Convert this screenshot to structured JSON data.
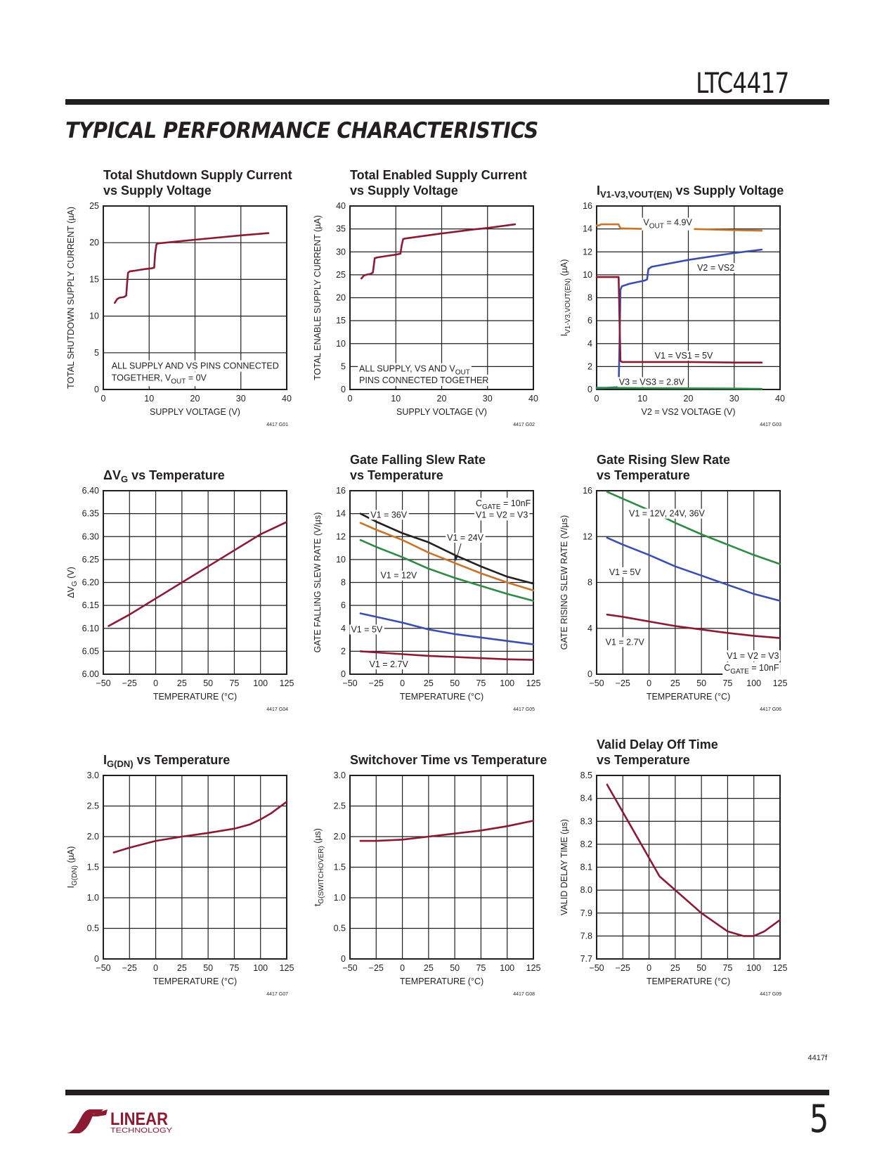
{
  "header": {
    "part_number": "LTC4417",
    "section_title": "TYPICAL PERFORMANCE CHARACTERISTICS"
  },
  "footer": {
    "doc_code": "4417f",
    "page_number": "5",
    "logo_text": "LINEAR",
    "logo_subtext": "TECHNOLOGY"
  },
  "colors": {
    "red": "#8b1a32",
    "blue": "#3a4fb0",
    "green": "#2e8b45",
    "orange": "#c8742a",
    "black": "#231f20",
    "brand": "#8b1a32"
  },
  "chart_data": [
    {
      "id": "g01",
      "type": "line",
      "title": [
        "Total Shutdown Supply Current",
        "vs Supply Voltage"
      ],
      "xlabel": "SUPPLY VOLTAGE (V)",
      "ylabel": "TOTAL SHUTDOWN SUPPLY CURRENT (µA)",
      "xlim": [
        0,
        40
      ],
      "ylim": [
        0,
        25
      ],
      "xticks": [
        0,
        10,
        20,
        30,
        40
      ],
      "yticks": [
        0,
        5,
        10,
        15,
        20,
        25
      ],
      "grid": true,
      "fig_id": "4417 G01",
      "notes": [
        {
          "text": "ALL SUPPLY AND VS PINS CONNECTED",
          "x": 1.8,
          "y": 3.2
        },
        {
          "text": "TOGETHER, Vₒᵤₜ = 0V",
          "rich": [
            "TOGETHER, V",
            "OUT",
            " = 0V"
          ],
          "x": 1.8,
          "y": 1.6
        }
      ],
      "series": [
        {
          "name": "Shutdown current",
          "color": "red",
          "x": [
            2.5,
            3,
            3.5,
            4.5,
            5,
            5.2,
            5.4,
            5.8,
            7,
            9,
            10.5,
            11.1,
            11.3,
            11.6,
            12,
            20,
            30,
            36
          ],
          "y": [
            11.8,
            12.3,
            12.5,
            12.6,
            12.8,
            14.5,
            15.9,
            16.1,
            16.2,
            16.4,
            16.5,
            16.6,
            18.5,
            19.8,
            19.9,
            20.4,
            21.0,
            21.3
          ]
        }
      ]
    },
    {
      "id": "g02",
      "type": "line",
      "title": [
        "Total Enabled Supply Current",
        "vs Supply Voltage"
      ],
      "xlabel": "SUPPLY VOLTAGE (V)",
      "ylabel": "TOTAL ENABLE SUPPLY CURRENT (µA)",
      "xlim": [
        0,
        40
      ],
      "ylim": [
        0,
        40
      ],
      "xticks": [
        0,
        10,
        20,
        30,
        40
      ],
      "yticks": [
        0,
        5,
        10,
        15,
        20,
        25,
        30,
        35,
        40
      ],
      "grid": true,
      "fig_id": "4417 G02",
      "notes": [
        {
          "text": "ALL SUPPLY, VS AND V",
          "rich": [
            "ALL SUPPLY, VS AND V",
            "OUT",
            ""
          ],
          "x": 2,
          "y": 4.5
        },
        {
          "text": "PINS CONNECTED TOGETHER",
          "x": 2,
          "y": 2.0
        }
      ],
      "series": [
        {
          "name": "Enabled current",
          "color": "red",
          "x": [
            2.5,
            3,
            3.5,
            4.5,
            5,
            5.2,
            5.4,
            6,
            8,
            10,
            11,
            11.3,
            11.6,
            12,
            20,
            27,
            30,
            36
          ],
          "y": [
            24.2,
            24.8,
            25.0,
            25.2,
            25.5,
            27.0,
            28.6,
            28.8,
            29.1,
            29.4,
            29.6,
            31.5,
            32.8,
            32.9,
            34.0,
            34.9,
            35.2,
            36.0
          ]
        }
      ]
    },
    {
      "id": "g03",
      "type": "line",
      "title": [
        "I",
        "V1-V3,VOUT(EN)",
        " vs Supply Voltage"
      ],
      "xlabel": "V2 = VS2 VOLTAGE (V)",
      "ylabel": "I V1-V3,VOUT(EN) (µA)",
      "ylabel_rich": [
        "I",
        "V1-V3,VOUT(EN)",
        " (µA)"
      ],
      "xlim": [
        0,
        40
      ],
      "ylim": [
        0,
        16
      ],
      "xticks": [
        0,
        10,
        20,
        30,
        40
      ],
      "yticks": [
        0,
        2,
        4,
        6,
        8,
        10,
        12,
        14,
        16
      ],
      "grid": true,
      "fig_id": "4417 G03",
      "series": [
        {
          "name": "VOUT = 4.9V",
          "label_rich": [
            "V",
            "OUT",
            " = 4.9V"
          ],
          "color": "orange",
          "x": [
            0,
            0.5,
            1,
            4.8,
            5.0,
            5.3,
            10,
            20,
            30,
            36
          ],
          "y": [
            14.3,
            14.3,
            14.4,
            14.4,
            14.2,
            14.05,
            14.0,
            14.0,
            13.9,
            13.85
          ]
        },
        {
          "name": "V2 = VS2",
          "color": "blue",
          "x": [
            0,
            4.8,
            5.0,
            5.2,
            5.5,
            7,
            10.5,
            11,
            11.3,
            12,
            20,
            30,
            36
          ],
          "y": [
            0.1,
            0.2,
            4.0,
            8.7,
            9.0,
            9.2,
            9.5,
            9.6,
            10.5,
            10.7,
            11.3,
            11.9,
            12.2
          ]
        },
        {
          "name": "V1 = VS1 = 5V",
          "color": "red",
          "x": [
            0,
            4.8,
            5.0,
            5.2,
            5.5,
            10,
            20,
            30,
            36
          ],
          "y": [
            9.8,
            9.8,
            6.0,
            2.5,
            2.4,
            2.4,
            2.4,
            2.35,
            2.35
          ]
        },
        {
          "name": "V3 = VS3 = 2.8V",
          "color": "green",
          "x": [
            0,
            10,
            20,
            30,
            36
          ],
          "y": [
            0.15,
            0.12,
            0.1,
            0.08,
            0.05
          ]
        }
      ],
      "labels": [
        {
          "series": 0,
          "x": 15.5,
          "y": 14.55
        },
        {
          "series": 1,
          "x": 26,
          "y": 10.6
        },
        {
          "series": 2,
          "x": 19,
          "y": 2.95
        },
        {
          "series": 3,
          "x": 12,
          "y": 0.65
        }
      ]
    },
    {
      "id": "g04",
      "type": "line",
      "title": [
        "ΔV",
        "G",
        " vs Temperature"
      ],
      "xlabel": "TEMPERATURE (°C)",
      "ylabel": "ΔV G (V)",
      "ylabel_rich": [
        "ΔV",
        "G",
        " (V)"
      ],
      "xlim": [
        -50,
        125
      ],
      "ylim": [
        6.0,
        6.4
      ],
      "xticks": [
        -50,
        -25,
        0,
        25,
        50,
        75,
        100,
        125
      ],
      "yticks": [
        6.0,
        6.05,
        6.1,
        6.15,
        6.2,
        6.25,
        6.3,
        6.35,
        6.4
      ],
      "ytick_decimals": 2,
      "grid": true,
      "fig_id": "4417 G04",
      "series": [
        {
          "name": "ΔVG",
          "color": "red",
          "x": [
            -45,
            -25,
            0,
            25,
            50,
            75,
            100,
            125
          ],
          "y": [
            6.105,
            6.13,
            6.165,
            6.2,
            6.235,
            6.27,
            6.305,
            6.332
          ]
        }
      ]
    },
    {
      "id": "g05",
      "type": "line",
      "title": [
        "Gate Falling Slew Rate",
        "vs Temperature"
      ],
      "xlabel": "TEMPERATURE (°C)",
      "ylabel": "GATE FALLING SLEW RATE (V/µs)",
      "xlim": [
        -50,
        125
      ],
      "ylim": [
        0,
        16
      ],
      "xticks": [
        -50,
        -25,
        0,
        25,
        50,
        75,
        100,
        125
      ],
      "yticks": [
        0,
        2,
        4,
        6,
        8,
        10,
        12,
        14,
        16
      ],
      "grid": true,
      "fig_id": "4417 G05",
      "notes": [
        {
          "text": "C GATE = 10nF",
          "rich": [
            "C",
            "GATE",
            " = 10nF"
          ],
          "x": 70,
          "y": 14.9
        },
        {
          "text": "V1 = V2 = V3",
          "x": 70,
          "y": 13.9
        }
      ],
      "series": [
        {
          "name": "V1 = 36V",
          "color": "black",
          "x": [
            -40,
            -25,
            0,
            25,
            50,
            75,
            100,
            125
          ],
          "y": [
            14.0,
            13.3,
            12.3,
            11.5,
            10.4,
            9.4,
            8.5,
            7.9
          ]
        },
        {
          "name": "V1 = 24V",
          "color": "orange",
          "x": [
            -40,
            -25,
            0,
            25,
            50,
            75,
            100,
            125
          ],
          "y": [
            13.2,
            12.6,
            11.7,
            10.6,
            9.7,
            8.8,
            8.0,
            7.3
          ]
        },
        {
          "name": "V1 = 12V",
          "color": "green",
          "x": [
            -40,
            -25,
            0,
            25,
            50,
            75,
            100,
            125
          ],
          "y": [
            11.7,
            11.1,
            10.2,
            9.2,
            8.4,
            7.7,
            7.0,
            6.4
          ]
        },
        {
          "name": "V1 = 5V",
          "color": "blue",
          "x": [
            -40,
            -25,
            0,
            25,
            50,
            75,
            100,
            125
          ],
          "y": [
            5.3,
            5.0,
            4.5,
            3.9,
            3.5,
            3.2,
            2.9,
            2.6
          ]
        },
        {
          "name": "V1 = 2.7V",
          "color": "red",
          "x": [
            -40,
            -25,
            0,
            25,
            50,
            75,
            100,
            125
          ],
          "y": [
            2.0,
            1.9,
            1.75,
            1.6,
            1.5,
            1.4,
            1.3,
            1.25
          ]
        }
      ],
      "labels": [
        {
          "series": 0,
          "x": -13,
          "y": 13.9
        },
        {
          "series": 1,
          "x": 60,
          "y": 11.9
        },
        {
          "series": 2,
          "x": -3.5,
          "y": 8.6
        },
        {
          "series": 3,
          "x": -34,
          "y": 3.9
        },
        {
          "series": 4,
          "x": -13,
          "y": 0.85
        }
      ]
    },
    {
      "id": "g06",
      "type": "line",
      "title": [
        "Gate Rising Slew Rate",
        "vs Temperature"
      ],
      "xlabel": "TEMPERATURE (°C)",
      "ylabel": "GATE RISING SLEW RATE (V/µs)",
      "xlim": [
        -50,
        125
      ],
      "ylim": [
        0,
        16
      ],
      "xticks": [
        -50,
        -25,
        0,
        25,
        50,
        75,
        100,
        125
      ],
      "yticks": [
        0,
        4,
        8,
        12,
        16
      ],
      "grid": true,
      "fig_id": "4417 G06",
      "notes": [
        {
          "text": "V1 = V2 = V3",
          "x": 124,
          "y": 1.6,
          "anchor": "end"
        },
        {
          "text": "C GATE = 10nF",
          "rich": [
            "C",
            "GATE",
            " = 10nF"
          ],
          "x": 124,
          "y": 0.55,
          "anchor": "end"
        }
      ],
      "series": [
        {
          "name": "V1 = 12V, 24V, 36V",
          "color": "green",
          "x": [
            -40,
            -25,
            0,
            25,
            50,
            75,
            100,
            125
          ],
          "y": [
            15.9,
            15.3,
            14.3,
            13.2,
            12.2,
            11.3,
            10.4,
            9.6
          ]
        },
        {
          "name": "V1 = 5V",
          "color": "blue",
          "x": [
            -40,
            -25,
            0,
            25,
            50,
            75,
            100,
            125
          ],
          "y": [
            11.9,
            11.3,
            10.4,
            9.4,
            8.6,
            7.8,
            7.0,
            6.4
          ]
        },
        {
          "name": "V1 = 2.7V",
          "color": "red",
          "x": [
            -40,
            -25,
            0,
            25,
            50,
            75,
            100,
            125
          ],
          "y": [
            5.2,
            5.0,
            4.6,
            4.2,
            3.9,
            3.6,
            3.35,
            3.15
          ]
        }
      ],
      "labels": [
        {
          "series": 0,
          "x": 17,
          "y": 14.0
        },
        {
          "series": 1,
          "x": -23,
          "y": 8.9
        },
        {
          "series": 2,
          "x": -23,
          "y": 2.8
        }
      ]
    },
    {
      "id": "g07",
      "type": "line",
      "title": [
        "I",
        "G(DN)",
        " vs Temperature"
      ],
      "xlabel": "TEMPERATURE (°C)",
      "ylabel": "I G(DN) (µA)",
      "ylabel_rich": [
        "I",
        "G(DN)",
        " (µA)"
      ],
      "xlim": [
        -50,
        125
      ],
      "ylim": [
        0,
        3.0
      ],
      "xticks": [
        -50,
        -25,
        0,
        25,
        50,
        75,
        100,
        125
      ],
      "yticks": [
        0,
        0.5,
        1.0,
        1.5,
        2.0,
        2.5,
        3.0
      ],
      "ytick_decimals": 1,
      "ytick_zero_plain": true,
      "grid": true,
      "fig_id": "4417 G07",
      "series": [
        {
          "name": "IG(DN)",
          "color": "red",
          "x": [
            -40,
            -25,
            0,
            25,
            50,
            75,
            90,
            100,
            110,
            125
          ],
          "y": [
            1.74,
            1.82,
            1.93,
            2.0,
            2.06,
            2.13,
            2.2,
            2.28,
            2.38,
            2.57
          ]
        }
      ]
    },
    {
      "id": "g08",
      "type": "line",
      "title": [
        "Switchover Time vs Temperature"
      ],
      "xlabel": "TEMPERATURE (°C)",
      "ylabel": "t G(SWITCHOVER) (µs)",
      "ylabel_rich": [
        "t",
        "G(SWITCHOVER)",
        " (µs)"
      ],
      "xlim": [
        -50,
        125
      ],
      "ylim": [
        0,
        3.0
      ],
      "xticks": [
        -50,
        -25,
        0,
        25,
        50,
        75,
        100,
        125
      ],
      "yticks": [
        0,
        0.5,
        1.0,
        1.5,
        2.0,
        2.5,
        3.0
      ],
      "ytick_decimals": 1,
      "ytick_zero_plain": true,
      "grid": true,
      "fig_id": "4417 G08",
      "series": [
        {
          "name": "tSWITCHOVER",
          "color": "red",
          "x": [
            -40,
            -25,
            0,
            25,
            50,
            75,
            100,
            125
          ],
          "y": [
            1.93,
            1.93,
            1.95,
            2.0,
            2.05,
            2.1,
            2.17,
            2.26
          ]
        }
      ]
    },
    {
      "id": "g09",
      "type": "line",
      "title": [
        "Valid Delay Off Time",
        "vs Temperature"
      ],
      "xlabel": "TEMPERATURE (°C)",
      "ylabel": "VALID DELAY TIME (µs)",
      "xlim": [
        -50,
        125
      ],
      "ylim": [
        7.7,
        8.5
      ],
      "xticks": [
        -50,
        -25,
        0,
        25,
        50,
        75,
        100,
        125
      ],
      "yticks": [
        7.7,
        7.8,
        7.9,
        8.0,
        8.1,
        8.2,
        8.3,
        8.4,
        8.5
      ],
      "ytick_decimals": 1,
      "grid": true,
      "fig_id": "4417 G09",
      "series": [
        {
          "name": "Valid delay",
          "color": "red",
          "x": [
            -40,
            -25,
            -10,
            0,
            10,
            25,
            50,
            75,
            90,
            100,
            110,
            125
          ],
          "y": [
            8.46,
            8.34,
            8.22,
            8.14,
            8.06,
            8.0,
            7.9,
            7.82,
            7.8,
            7.8,
            7.82,
            7.87
          ]
        }
      ]
    }
  ]
}
